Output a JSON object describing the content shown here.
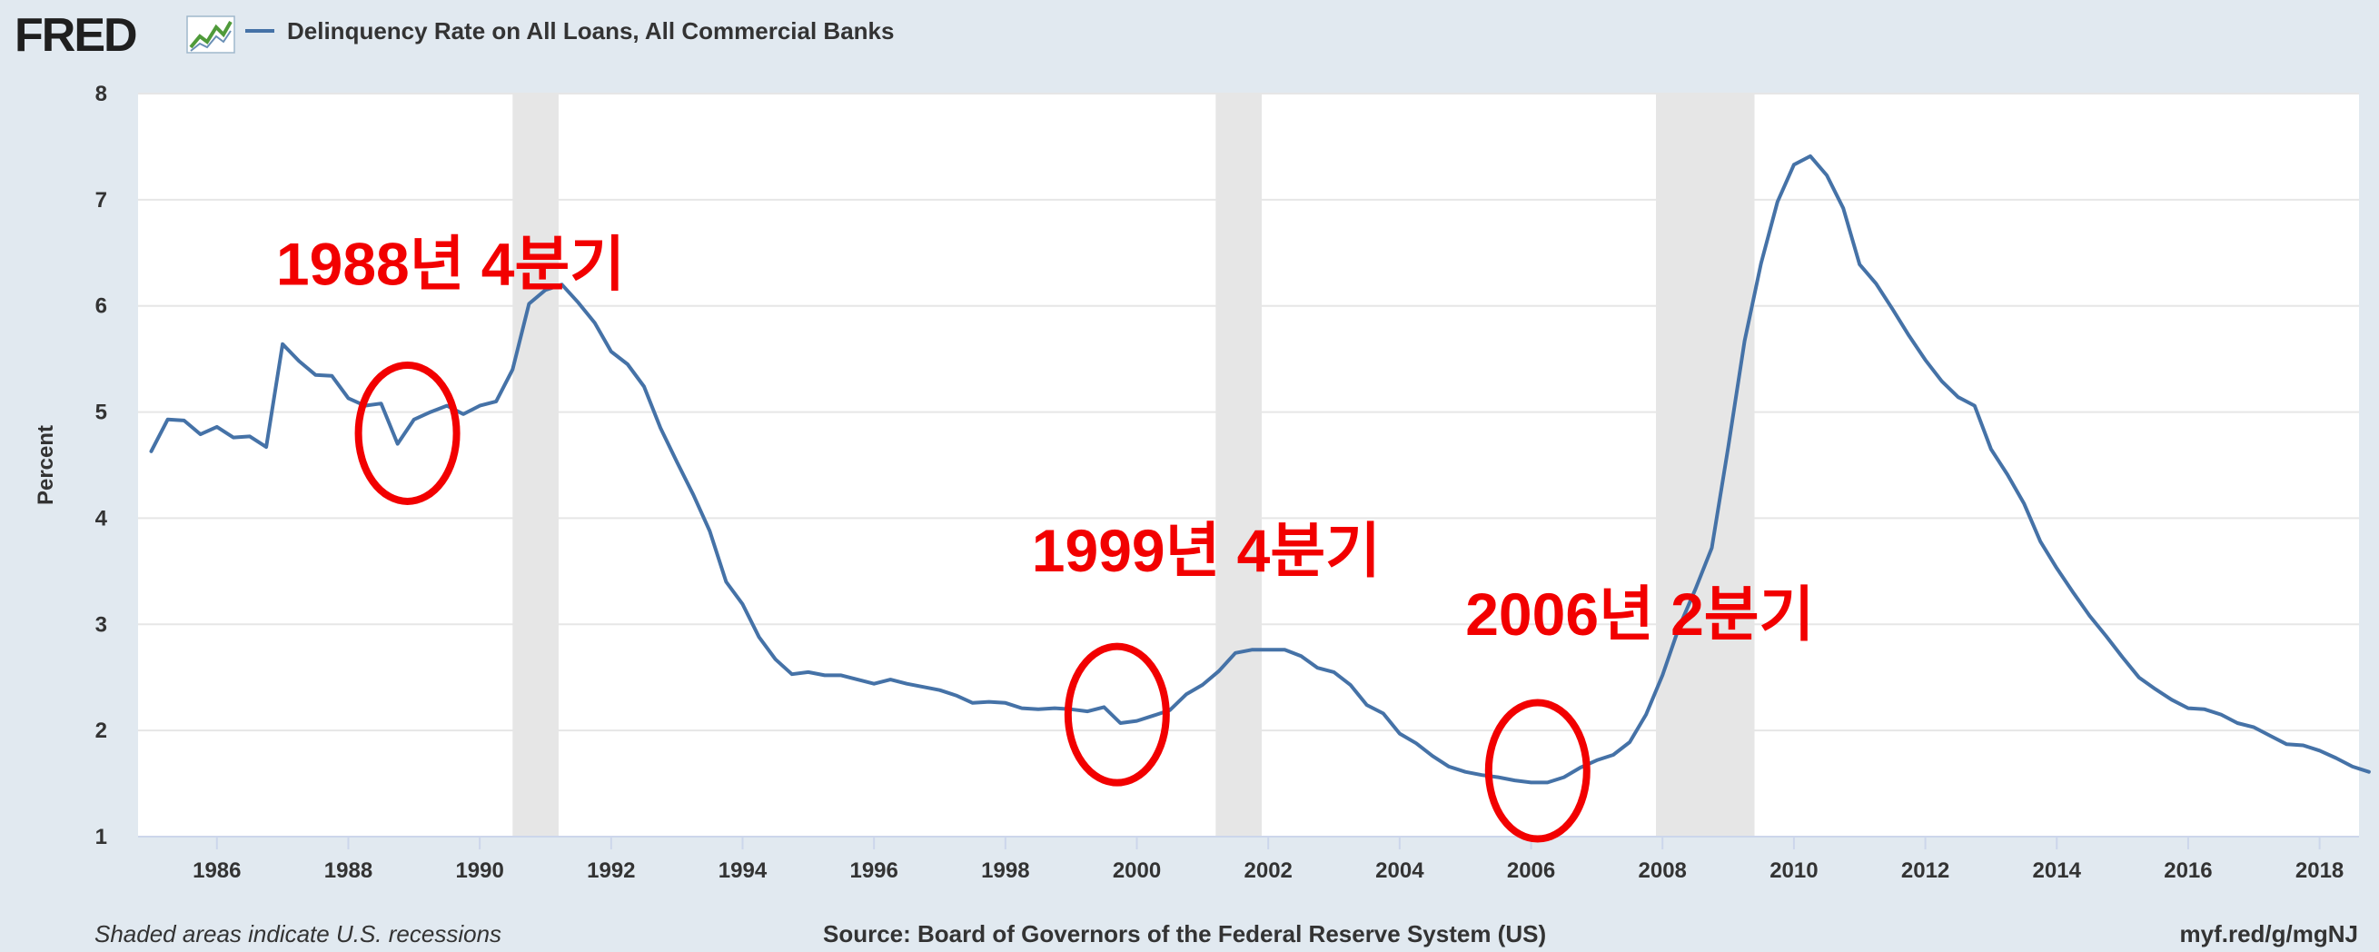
{
  "header": {
    "logo": "FRED",
    "series_title": "Delinquency Rate on All Loans, All Commercial Banks"
  },
  "footer": {
    "note": "Shaded areas indicate U.S. recessions",
    "source": "Source: Board of Governors of the Federal Reserve System (US)",
    "link": "myf.red/g/mgNJ"
  },
  "colors": {
    "background": "#e1e9f0",
    "plot_bg": "#ffffff",
    "line": "#4572a7",
    "recession": "#e6e6e6",
    "annotation": "#f20000"
  },
  "chart_data": {
    "type": "line",
    "ylabel": "Percent",
    "xlim": [
      1984.8,
      2018.6
    ],
    "ylim": [
      1,
      8
    ],
    "x_ticks": [
      1986,
      1988,
      1990,
      1992,
      1994,
      1996,
      1998,
      2000,
      2002,
      2004,
      2006,
      2008,
      2010,
      2012,
      2014,
      2016,
      2018
    ],
    "y_ticks": [
      1,
      2,
      3,
      4,
      5,
      6,
      7,
      8
    ],
    "grid": true,
    "recessions": [
      [
        1990.5,
        1991.2
      ],
      [
        2001.2,
        2001.9
      ],
      [
        2007.9,
        2009.4
      ]
    ],
    "series": [
      {
        "values": [
          [
            1985.0,
            4.63
          ],
          [
            1985.25,
            4.93
          ],
          [
            1985.5,
            4.92
          ],
          [
            1985.75,
            4.79
          ],
          [
            1986.0,
            4.86
          ],
          [
            1986.25,
            4.76
          ],
          [
            1986.5,
            4.77
          ],
          [
            1986.75,
            4.67
          ],
          [
            1987.0,
            5.64
          ],
          [
            1987.25,
            5.48
          ],
          [
            1987.5,
            5.35
          ],
          [
            1987.75,
            5.34
          ],
          [
            1988.0,
            5.13
          ],
          [
            1988.25,
            5.06
          ],
          [
            1988.5,
            5.08
          ],
          [
            1988.75,
            4.7
          ],
          [
            1989.0,
            4.93
          ],
          [
            1989.25,
            5.0
          ],
          [
            1989.5,
            5.06
          ],
          [
            1989.75,
            4.98
          ],
          [
            1990.0,
            5.06
          ],
          [
            1990.25,
            5.1
          ],
          [
            1990.5,
            5.4
          ],
          [
            1990.75,
            6.02
          ],
          [
            1991.0,
            6.15
          ],
          [
            1991.25,
            6.2
          ],
          [
            1991.5,
            6.03
          ],
          [
            1991.75,
            5.84
          ],
          [
            1992.0,
            5.57
          ],
          [
            1992.25,
            5.45
          ],
          [
            1992.5,
            5.24
          ],
          [
            1992.75,
            4.85
          ],
          [
            1993.0,
            4.53
          ],
          [
            1993.25,
            4.22
          ],
          [
            1993.5,
            3.88
          ],
          [
            1993.75,
            3.4
          ],
          [
            1994.0,
            3.19
          ],
          [
            1994.25,
            2.88
          ],
          [
            1994.5,
            2.67
          ],
          [
            1994.75,
            2.53
          ],
          [
            1995.0,
            2.55
          ],
          [
            1995.25,
            2.52
          ],
          [
            1995.5,
            2.52
          ],
          [
            1995.75,
            2.48
          ],
          [
            1996.0,
            2.44
          ],
          [
            1996.25,
            2.48
          ],
          [
            1996.5,
            2.44
          ],
          [
            1996.75,
            2.41
          ],
          [
            1997.0,
            2.38
          ],
          [
            1997.25,
            2.33
          ],
          [
            1997.5,
            2.26
          ],
          [
            1997.75,
            2.27
          ],
          [
            1998.0,
            2.26
          ],
          [
            1998.25,
            2.21
          ],
          [
            1998.5,
            2.2
          ],
          [
            1998.75,
            2.21
          ],
          [
            1999.0,
            2.2
          ],
          [
            1999.25,
            2.18
          ],
          [
            1999.5,
            2.22
          ],
          [
            1999.75,
            2.07
          ],
          [
            2000.0,
            2.09
          ],
          [
            2000.25,
            2.14
          ],
          [
            2000.5,
            2.19
          ],
          [
            2000.75,
            2.34
          ],
          [
            2001.0,
            2.43
          ],
          [
            2001.25,
            2.56
          ],
          [
            2001.5,
            2.73
          ],
          [
            2001.75,
            2.76
          ],
          [
            2002.0,
            2.76
          ],
          [
            2002.25,
            2.76
          ],
          [
            2002.5,
            2.7
          ],
          [
            2002.75,
            2.59
          ],
          [
            2003.0,
            2.55
          ],
          [
            2003.25,
            2.43
          ],
          [
            2003.5,
            2.24
          ],
          [
            2003.75,
            2.16
          ],
          [
            2004.0,
            1.97
          ],
          [
            2004.25,
            1.88
          ],
          [
            2004.5,
            1.76
          ],
          [
            2004.75,
            1.66
          ],
          [
            2005.0,
            1.61
          ],
          [
            2005.25,
            1.58
          ],
          [
            2005.5,
            1.56
          ],
          [
            2005.75,
            1.53
          ],
          [
            2006.0,
            1.51
          ],
          [
            2006.25,
            1.51
          ],
          [
            2006.5,
            1.56
          ],
          [
            2006.75,
            1.65
          ],
          [
            2007.0,
            1.72
          ],
          [
            2007.25,
            1.77
          ],
          [
            2007.5,
            1.89
          ],
          [
            2007.75,
            2.15
          ],
          [
            2008.0,
            2.52
          ],
          [
            2008.25,
            2.97
          ],
          [
            2008.5,
            3.33
          ],
          [
            2008.75,
            3.72
          ],
          [
            2009.0,
            4.67
          ],
          [
            2009.25,
            5.67
          ],
          [
            2009.5,
            6.4
          ],
          [
            2009.75,
            6.98
          ],
          [
            2010.0,
            7.33
          ],
          [
            2010.25,
            7.41
          ],
          [
            2010.5,
            7.23
          ],
          [
            2010.75,
            6.92
          ],
          [
            2011.0,
            6.39
          ],
          [
            2011.25,
            6.21
          ],
          [
            2011.5,
            5.97
          ],
          [
            2011.75,
            5.72
          ],
          [
            2012.0,
            5.49
          ],
          [
            2012.25,
            5.29
          ],
          [
            2012.5,
            5.14
          ],
          [
            2012.75,
            5.06
          ],
          [
            2013.0,
            4.65
          ],
          [
            2013.25,
            4.41
          ],
          [
            2013.5,
            4.14
          ],
          [
            2013.75,
            3.78
          ],
          [
            2014.0,
            3.53
          ],
          [
            2014.25,
            3.3
          ],
          [
            2014.5,
            3.08
          ],
          [
            2014.75,
            2.89
          ],
          [
            2015.0,
            2.69
          ],
          [
            2015.25,
            2.5
          ],
          [
            2015.5,
            2.39
          ],
          [
            2015.75,
            2.29
          ],
          [
            2016.0,
            2.21
          ],
          [
            2016.25,
            2.2
          ],
          [
            2016.5,
            2.15
          ],
          [
            2016.75,
            2.07
          ],
          [
            2017.0,
            2.03
          ],
          [
            2017.25,
            1.95
          ],
          [
            2017.5,
            1.87
          ],
          [
            2017.75,
            1.86
          ],
          [
            2018.0,
            1.81
          ],
          [
            2018.25,
            1.74
          ],
          [
            2018.5,
            1.66
          ],
          [
            2018.75,
            1.61
          ]
        ]
      }
    ],
    "annotations": [
      {
        "text": "1988년 4분기",
        "x": 1986.9,
        "y": 6.2,
        "circle": {
          "x": 1988.9,
          "y": 4.8
        }
      },
      {
        "text": "1999년 4분기",
        "x": 1998.4,
        "y": 3.5,
        "circle": {
          "x": 1999.7,
          "y": 2.15
        }
      },
      {
        "text": "2006년 2분기",
        "x": 2005.0,
        "y": 2.9,
        "circle": {
          "x": 2006.1,
          "y": 1.62
        }
      }
    ]
  }
}
